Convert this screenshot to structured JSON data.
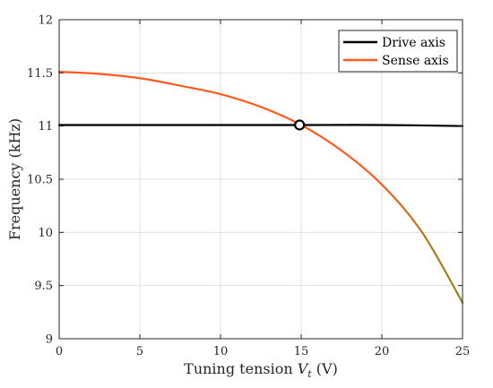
{
  "chart_data": {
    "type": "line",
    "xlabel_main": "Tuning tension ",
    "xlabel_var": "V",
    "xlabel_sub": "t",
    "xlabel_unit": " (V)",
    "ylabel": "Frequency (kHz)",
    "xlim": [
      0,
      25
    ],
    "ylim": [
      9,
      12
    ],
    "x_ticks": [
      "0",
      "5",
      "10",
      "15",
      "20",
      "25"
    ],
    "y_ticks": [
      "9",
      "9.5",
      "10",
      "10.5",
      "11",
      "11.5",
      "12"
    ],
    "grid": true,
    "legend_position": "top-right",
    "series": [
      {
        "name": "Drive axis",
        "color": "#000000",
        "x": [
          0,
          5,
          10,
          15,
          20,
          25
        ],
        "y": [
          11.01,
          11.01,
          11.01,
          11.01,
          11.01,
          11.0
        ]
      },
      {
        "name": "Sense axis",
        "color": "#ff5a1f",
        "color_end": "#8a8a1a",
        "x": [
          0,
          2.5,
          5,
          7.5,
          10,
          12.5,
          15,
          17.5,
          20,
          22.5,
          25
        ],
        "y": [
          11.51,
          11.49,
          11.45,
          11.38,
          11.3,
          11.18,
          11.01,
          10.77,
          10.45,
          10.0,
          9.34
        ]
      }
    ],
    "annotations": [
      {
        "marker": "circle",
        "x": 14.9,
        "y": 11.01
      }
    ]
  }
}
